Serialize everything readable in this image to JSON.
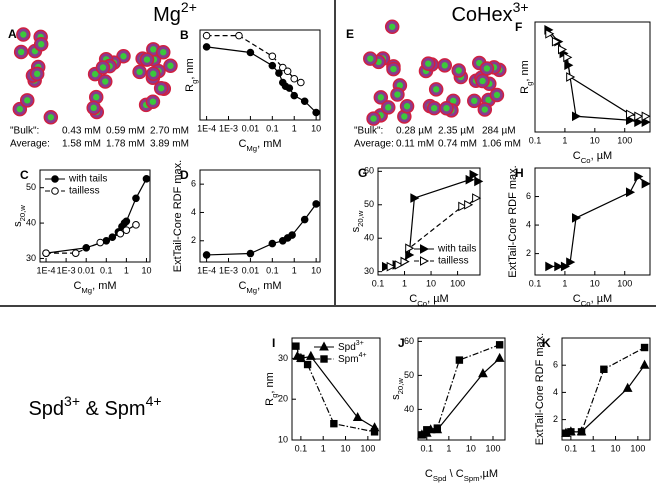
{
  "headers": [
    [
      {
        "text": "Mg"
      },
      {
        "text": "2+",
        "sup": true
      }
    ],
    [
      {
        "text": "CoHex"
      },
      {
        "text": "3+",
        "sup": true
      }
    ],
    [
      {
        "text": "Spd"
      },
      {
        "text": "3+",
        "sup": true
      },
      {
        "text": " & Spm"
      },
      {
        "text": "4+",
        "sup": true
      }
    ]
  ],
  "image_panels": [
    {
      "label": "A",
      "rows": [
        [
          "\"Bulk\":",
          "0.43 mM",
          "0.59 mM",
          "2.70 mM"
        ],
        [
          "Average:",
          "1.58 mM",
          "1.78 mM",
          "3.89 mM"
        ]
      ]
    },
    {
      "label": "E",
      "rows": [
        [
          "\"Bulk\":",
          "0.28 µM",
          "2.35 µM",
          "284 µM"
        ],
        [
          "Average:",
          "0.11 mM",
          "0.74 mM",
          "1.06 mM"
        ]
      ]
    }
  ],
  "chart_data": [
    {
      "type": "line",
      "panel": "B",
      "xscale": "log",
      "xlabel": [
        {
          "text": "C"
        },
        {
          "text": "Mg",
          "sub": true
        },
        {
          "text": ", mM"
        }
      ],
      "ylabel": [
        {
          "text": "R"
        },
        {
          "text": "g",
          "sub": true
        },
        {
          "text": ", nm"
        }
      ],
      "xlim": [
        5e-05,
        15
      ],
      "ylim": [
        12,
        36
      ],
      "xticks": [
        {
          "value": 0.0001,
          "label": "1E-4"
        },
        {
          "value": 0.001,
          "label": "1E-3"
        },
        0.01,
        0.1,
        1,
        10
      ],
      "series": [
        {
          "color": "#000000",
          "marker": "circle",
          "filled": true,
          "linestyle": "solid",
          "x": [
            0.0001,
            0.01,
            0.1,
            0.2,
            0.3,
            0.4,
            0.6,
            1,
            3,
            10
          ],
          "values": [
            31.5,
            30,
            26.5,
            24.5,
            22,
            21,
            20.5,
            18.5,
            17,
            14
          ]
        },
        {
          "color": "#000000",
          "marker": "circle",
          "filled": false,
          "linestyle": "dashed",
          "x": [
            0.0001,
            0.003,
            0.1,
            0.3,
            0.5,
            1,
            2
          ],
          "values": [
            34.5,
            34.5,
            29,
            26,
            25,
            23,
            22
          ]
        }
      ]
    },
    {
      "type": "line",
      "panel": "C",
      "xscale": "log",
      "legend": "upper left",
      "xlabel": [
        {
          "text": "C"
        },
        {
          "text": "Mg",
          "sub": true
        },
        {
          "text": ", mM"
        }
      ],
      "ylabel": [
        {
          "text": "s"
        },
        {
          "text": "20,w",
          "sub": true
        }
      ],
      "xlim": [
        5e-05,
        15
      ],
      "ylim": [
        29,
        55
      ],
      "yticks": [
        30,
        40,
        50
      ],
      "xticks": [
        {
          "value": 0.0001,
          "label": "1E-4"
        },
        {
          "value": 0.001,
          "label": "1E-3"
        },
        0.01,
        0.1,
        1,
        10
      ],
      "series": [
        {
          "name": "with tails",
          "color": "#000000",
          "marker": "circle",
          "filled": true,
          "linestyle": "solid",
          "x": [
            0.0001,
            0.01,
            0.1,
            0.2,
            0.4,
            0.6,
            0.8,
            1,
            3,
            10
          ],
          "values": [
            31.5,
            33,
            35,
            36,
            37.5,
            39,
            40,
            40.5,
            47,
            52.5
          ]
        },
        {
          "name": "tailless",
          "color": "#000000",
          "marker": "circle",
          "filled": false,
          "linestyle": "dashed",
          "x": [
            0.0001,
            0.003,
            0.05,
            0.5,
            1,
            3
          ],
          "values": [
            31.5,
            31.5,
            34.5,
            37,
            38,
            39.5
          ]
        }
      ]
    },
    {
      "type": "line",
      "panel": "D",
      "xscale": "log",
      "xlabel": [
        {
          "text": "C"
        },
        {
          "text": "Mg",
          "sub": true
        },
        {
          "text": ", mM"
        }
      ],
      "ylabel": [
        {
          "text": "ExtTail-Core RDF max."
        }
      ],
      "xlim": [
        5e-05,
        15
      ],
      "ylim": [
        0.5,
        7
      ],
      "yticks": [
        2,
        4,
        6
      ],
      "xticks": [
        {
          "value": 0.0001,
          "label": "1E-4"
        },
        {
          "value": 0.001,
          "label": "1E-3"
        },
        0.01,
        0.1,
        1,
        10
      ],
      "series": [
        {
          "color": "#000000",
          "marker": "circle",
          "filled": true,
          "linestyle": "solid",
          "x": [
            0.0001,
            0.01,
            0.1,
            0.3,
            0.5,
            0.8,
            3,
            10
          ],
          "values": [
            1.0,
            1.1,
            1.8,
            2.0,
            2.2,
            2.4,
            3.5,
            4.6
          ]
        }
      ]
    },
    {
      "type": "line",
      "panel": "F",
      "xscale": "log",
      "xlabel": [
        {
          "text": "C"
        },
        {
          "text": "Co",
          "sub": true
        },
        {
          "text": ", µM"
        }
      ],
      "ylabel": [
        {
          "text": "R"
        },
        {
          "text": "g",
          "sub": true
        },
        {
          "text": ", nm"
        }
      ],
      "xlim": [
        0.1,
        700
      ],
      "ylim": [
        10,
        38
      ],
      "xticks": [
        0.1,
        1,
        10,
        100
      ],
      "series": [
        {
          "color": "#000000",
          "marker": "triangle-right",
          "filled": true,
          "linestyle": "solid",
          "x": [
            0.28,
            0.6,
            0.9,
            1.3,
            2.35,
            150,
            284,
            500
          ],
          "values": [
            36,
            33,
            30,
            27,
            14,
            13,
            12.5,
            12.5
          ]
        },
        {
          "color": "#000000",
          "marker": "triangle-right",
          "filled": false,
          "linestyle": "solid",
          "x": [
            0.3,
            0.5,
            0.8,
            1.2,
            1.5,
            150,
            284,
            500
          ],
          "values": [
            35,
            33,
            31,
            29,
            24,
            14.5,
            14,
            14
          ]
        }
      ]
    },
    {
      "type": "line",
      "panel": "G",
      "xscale": "log",
      "legend": "lower right",
      "xlabel": [
        {
          "text": "C"
        },
        {
          "text": "Co",
          "sub": true
        },
        {
          "text": ", µM"
        }
      ],
      "ylabel": [
        {
          "text": "s"
        },
        {
          "text": "20,w",
          "sub": true
        }
      ],
      "xlim": [
        0.1,
        700
      ],
      "ylim": [
        29,
        61
      ],
      "yticks": [
        30,
        40,
        50,
        60
      ],
      "xticks": [
        0.1,
        1,
        10,
        100
      ],
      "series": [
        {
          "name": "with tails",
          "color": "#000000",
          "marker": "triangle-right",
          "filled": true,
          "linestyle": "solid",
          "x": [
            0.2,
            0.5,
            1,
            1.5,
            2.35,
            284,
            400,
            600
          ],
          "values": [
            31.5,
            32,
            33,
            35,
            52,
            57.5,
            59,
            57
          ]
        },
        {
          "name": "tailless",
          "color": "#000000",
          "marker": "triangle-right",
          "filled": false,
          "linestyle": "dashed",
          "x": [
            0.3,
            0.6,
            1,
            1.5,
            150,
            250,
            500
          ],
          "values": [
            31.5,
            32,
            33,
            37,
            49.5,
            50,
            52
          ]
        }
      ]
    },
    {
      "type": "line",
      "panel": "H",
      "xscale": "log",
      "xlabel": [
        {
          "text": "C"
        },
        {
          "text": "Co",
          "sub": true
        },
        {
          "text": ", µM"
        }
      ],
      "ylabel": [
        {
          "text": "ExtTail-Core RDF max."
        }
      ],
      "xlim": [
        0.1,
        700
      ],
      "ylim": [
        0.5,
        8
      ],
      "yticks": [
        2,
        4,
        6
      ],
      "xticks": [
        0.1,
        1,
        10,
        100
      ],
      "series": [
        {
          "color": "#000000",
          "marker": "triangle-right",
          "filled": true,
          "linestyle": "solid",
          "x": [
            0.3,
            0.6,
            1,
            1.5,
            2.35,
            150,
            284,
            500
          ],
          "values": [
            1.1,
            1.1,
            1.1,
            1.4,
            4.5,
            6.3,
            7.4,
            6.9
          ]
        }
      ]
    },
    {
      "type": "line",
      "panel": "I",
      "xscale": "log",
      "legend": "upper right",
      "ylabel": [
        {
          "text": "R"
        },
        {
          "text": "g",
          "sub": true
        },
        {
          "text": ", nm"
        }
      ],
      "xlim": [
        0.04,
        350
      ],
      "ylim": [
        10,
        35
      ],
      "yticks": [
        10,
        20,
        30
      ],
      "xticks": [
        0.1,
        1,
        10,
        100
      ],
      "series": [
        {
          "name": [
            {
              "text": "Spd"
            },
            {
              "text": "3+",
              "sup": true
            }
          ],
          "color": "#000000",
          "marker": "triangle-up",
          "filled": true,
          "linestyle": "solid",
          "x": [
            0.07,
            0.1,
            0.28,
            35,
            200
          ],
          "values": [
            30.5,
            30,
            30.5,
            15.5,
            13
          ]
        },
        {
          "name": [
            {
              "text": "Spm"
            },
            {
              "text": "4+",
              "sup": true
            }
          ],
          "color": "#000000",
          "marker": "square",
          "filled": true,
          "linestyle": "dashdot",
          "x": [
            0.06,
            0.1,
            0.2,
            3,
            200
          ],
          "values": [
            33,
            30,
            28.5,
            14,
            12
          ]
        }
      ]
    },
    {
      "type": "line",
      "panel": "J",
      "xscale": "log",
      "xlabel": [
        {
          "text": "C"
        },
        {
          "text": "Spd",
          "sub": true
        },
        {
          "text": " \\ C"
        },
        {
          "text": "Spm",
          "sub": true
        },
        {
          "text": ",µM"
        }
      ],
      "ylabel": [
        {
          "text": "s"
        },
        {
          "text": "20,w",
          "sub": true
        }
      ],
      "xlim": [
        0.04,
        350
      ],
      "ylim": [
        31,
        61
      ],
      "yticks": [
        40,
        50,
        60
      ],
      "xticks": [
        0.1,
        1,
        10,
        100
      ],
      "series": [
        {
          "color": "#000000",
          "marker": "triangle-up",
          "filled": true,
          "linestyle": "solid",
          "x": [
            0.06,
            0.1,
            0.15,
            0.3,
            35,
            200
          ],
          "values": [
            32.5,
            33,
            34,
            34,
            50.5,
            55
          ]
        },
        {
          "color": "#000000",
          "marker": "square",
          "filled": true,
          "linestyle": "dashdot",
          "x": [
            0.06,
            0.1,
            0.3,
            3,
            200
          ],
          "values": [
            32.5,
            34,
            34.5,
            54.5,
            59
          ]
        }
      ]
    },
    {
      "type": "line",
      "panel": "K",
      "xscale": "log",
      "ylabel": [
        {
          "text": "ExtTail-Core RDF max."
        }
      ],
      "xlim": [
        0.04,
        350
      ],
      "ylim": [
        0.5,
        8
      ],
      "yticks": [
        2,
        4,
        6
      ],
      "xticks": [
        0.1,
        1,
        10,
        100
      ],
      "series": [
        {
          "color": "#000000",
          "marker": "triangle-up",
          "filled": true,
          "linestyle": "solid",
          "x": [
            0.06,
            0.1,
            0.3,
            35,
            200
          ],
          "values": [
            1.0,
            1.1,
            1.1,
            4.3,
            6.0
          ]
        },
        {
          "color": "#000000",
          "marker": "square",
          "filled": true,
          "linestyle": "dashdot",
          "x": [
            0.06,
            0.1,
            0.3,
            3,
            200
          ],
          "values": [
            1.0,
            1.1,
            1.1,
            5.7,
            7.3
          ]
        }
      ]
    }
  ]
}
